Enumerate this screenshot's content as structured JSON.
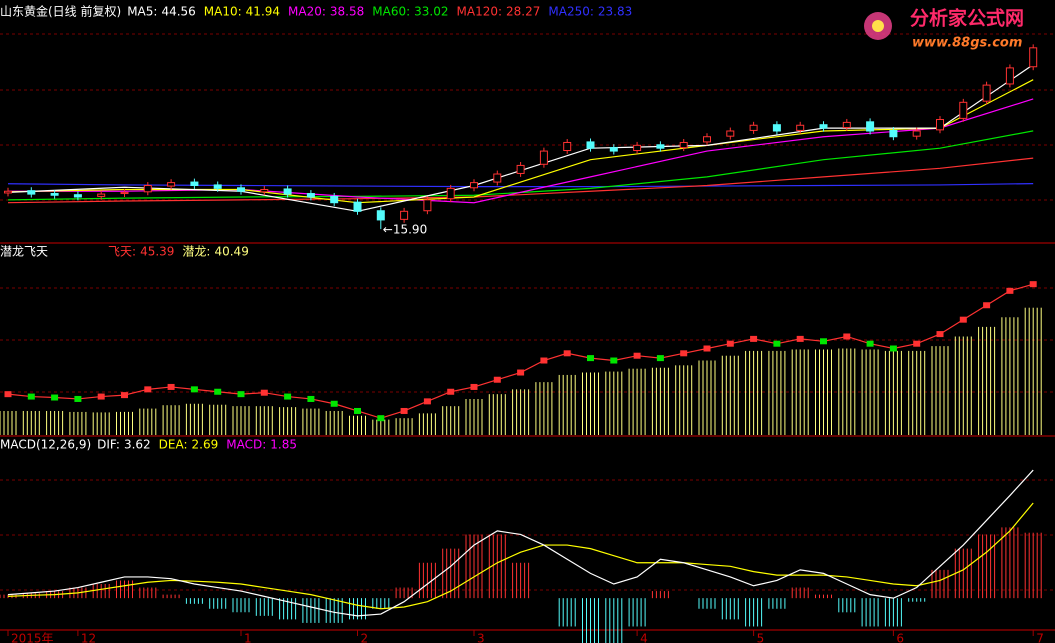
{
  "watermark": {
    "title": "分析家公式网",
    "url": "www.88gs.com"
  },
  "chart_data": [
    {
      "type": "candlestick",
      "title": "山东黄金(日线 前复权)",
      "open": [
        22.2,
        22.6,
        22.1,
        21.9,
        21.6,
        22.1,
        22.4,
        23.4,
        24.1,
        23.6,
        23.1,
        22.4,
        22.9,
        22.1,
        21.6,
        20.6,
        19.1,
        17.6,
        19.1,
        21.2,
        23.1,
        24.1,
        25.6,
        27.2,
        29.6,
        31.1,
        30.1,
        29.6,
        30.6,
        30.1,
        31.1,
        32.1,
        33.1,
        34.1,
        33.1,
        34.1,
        33.6,
        34.6,
        33.1,
        32.1,
        33.2,
        35.2,
        38.2,
        41.2,
        44.2
      ],
      "close": [
        22.5,
        22,
        21.8,
        21.5,
        22,
        22.3,
        23.5,
        24,
        23.5,
        23,
        22.5,
        22.8,
        22,
        21.5,
        20.5,
        19,
        17.5,
        19,
        21,
        23,
        24,
        25.5,
        27,
        29.5,
        31,
        30,
        29.5,
        30.5,
        30,
        31,
        32,
        33,
        34,
        33,
        34,
        33.5,
        34.5,
        33,
        32,
        33,
        35,
        38,
        41,
        44,
        47.5
      ],
      "high": [
        23.1,
        23.2,
        22.7,
        22.5,
        22.6,
        22.9,
        24.1,
        24.6,
        24.7,
        24.2,
        23.7,
        23.4,
        23.5,
        22.7,
        22.2,
        21.2,
        19.7,
        19.6,
        21.6,
        23.6,
        24.6,
        26.1,
        27.6,
        30.1,
        31.6,
        31.7,
        30.7,
        31.1,
        31.2,
        31.6,
        32.6,
        33.6,
        34.6,
        34.7,
        34.6,
        34.7,
        35.1,
        35.2,
        33.7,
        33.6,
        35.6,
        38.6,
        41.6,
        44.6,
        48.1
      ],
      "low": [
        21.6,
        21.4,
        21.2,
        20.9,
        21.0,
        21.5,
        21.8,
        22.8,
        22.9,
        22.4,
        21.9,
        21.8,
        21.4,
        20.9,
        19.9,
        18.4,
        15.9,
        17.0,
        18.5,
        20.6,
        22.5,
        23.5,
        25.0,
        26.6,
        29.0,
        29.4,
        28.9,
        29.0,
        29.4,
        29.5,
        30.5,
        31.5,
        32.5,
        32.4,
        32.5,
        32.9,
        33.0,
        32.4,
        31.4,
        31.5,
        32.6,
        34.6,
        37.6,
        40.6,
        43.6
      ],
      "up_color": "#ff3232",
      "down_color": "#54fcfc",
      "ylim": [
        14,
        52
      ],
      "annotation": "←15.90",
      "series": [
        {
          "name": "MA5:",
          "color": "#ffffff",
          "x": [
            0,
            5,
            10,
            15,
            20,
            25,
            30,
            35,
            40,
            44
          ],
          "values": [
            22.3,
            23.2,
            22.5,
            19,
            23.5,
            30,
            30.5,
            33.5,
            33.5,
            44.56
          ]
        },
        {
          "name": "MA10:",
          "color": "#ffff00",
          "x": [
            0,
            5,
            10,
            15,
            20,
            25,
            30,
            35,
            40,
            44
          ],
          "values": [
            22.4,
            22.8,
            22.8,
            20.5,
            21.5,
            28,
            30.5,
            33,
            33.5,
            41.94
          ]
        },
        {
          "name": "MA20:",
          "color": "#ff00ff",
          "x": [
            0,
            5,
            10,
            15,
            20,
            25,
            30,
            35,
            40,
            44
          ],
          "values": [
            22.5,
            22.5,
            22.8,
            21.5,
            20.5,
            25,
            29.5,
            32,
            33.5,
            38.58
          ]
        },
        {
          "name": "MA60:",
          "color": "#00e600",
          "x": [
            0,
            5,
            10,
            15,
            20,
            25,
            30,
            35,
            40,
            44
          ],
          "values": [
            21,
            21.3,
            21.5,
            21.6,
            21.8,
            23,
            25,
            28,
            30,
            33.02
          ]
        },
        {
          "name": "MA120:",
          "color": "#ff3232",
          "x": [
            0,
            5,
            10,
            15,
            20,
            25,
            30,
            35,
            40,
            44
          ],
          "values": [
            20.5,
            20.8,
            21,
            21.2,
            21.5,
            22.5,
            23.5,
            25,
            26.5,
            28.27
          ]
        },
        {
          "name": "MA250:",
          "color": "#3030ff",
          "x": [
            0,
            5,
            10,
            15,
            20,
            25,
            30,
            35,
            40,
            44
          ],
          "values": [
            23.8,
            23.6,
            23.5,
            23.4,
            23.3,
            23.3,
            23.4,
            23.5,
            23.6,
            23.83
          ]
        }
      ]
    },
    {
      "type": "indicator",
      "title": "潜龙飞天",
      "ylim": [
        14,
        50
      ],
      "series": [
        {
          "name": "飞天:",
          "color": "#ff3232",
          "down_color": "#00e600",
          "values": [
            22.5,
            22,
            21.8,
            21.5,
            22,
            22.3,
            23.5,
            24,
            23.5,
            23,
            22.5,
            22.8,
            22,
            21.5,
            20.5,
            19,
            17.5,
            19,
            21,
            23,
            24,
            25.5,
            27,
            29.5,
            31,
            30,
            29.5,
            30.5,
            30,
            31,
            32,
            33,
            34,
            33,
            34,
            33.5,
            34.5,
            33,
            32,
            33,
            35,
            38,
            41,
            44,
            45.39
          ]
        },
        {
          "name": "潜龙:",
          "color": "#ffff80",
          "values": [
            19,
            19,
            19,
            18.8,
            18.7,
            18.8,
            19.5,
            20.2,
            20.5,
            20.3,
            20,
            20,
            19.8,
            19.5,
            19,
            18,
            17.2,
            17.5,
            18.5,
            20,
            21.5,
            22.5,
            23.5,
            25,
            26.5,
            27,
            27.2,
            27.8,
            28,
            28.5,
            29.5,
            30.5,
            31.5,
            31.5,
            31.8,
            31.8,
            32,
            31.8,
            31.5,
            31.5,
            32.5,
            34.5,
            36.5,
            38.5,
            40.49
          ]
        }
      ]
    },
    {
      "type": "macd",
      "title": "MACD(12,26,9)",
      "ylim": [
        -0.9,
        4.3
      ],
      "categories": [
        "2015年",
        null,
        null,
        "12",
        null,
        null,
        null,
        null,
        null,
        null,
        "1",
        null,
        null,
        null,
        null,
        "2",
        null,
        null,
        null,
        null,
        "3",
        null,
        null,
        null,
        null,
        null,
        null,
        "4",
        null,
        null,
        null,
        null,
        "5",
        null,
        null,
        null,
        null,
        null,
        "6",
        null,
        null,
        null,
        null,
        null,
        "7"
      ],
      "series": [
        {
          "name": "DIF:",
          "color": "#ffffff",
          "values": [
            0.1,
            0.15,
            0.2,
            0.3,
            0.45,
            0.6,
            0.6,
            0.55,
            0.4,
            0.3,
            0.2,
            0.05,
            -0.1,
            -0.25,
            -0.4,
            -0.5,
            -0.45,
            -0.1,
            0.4,
            0.9,
            1.5,
            1.9,
            1.8,
            1.5,
            1.1,
            0.7,
            0.4,
            0.6,
            1.1,
            1.0,
            0.8,
            0.6,
            0.35,
            0.5,
            0.8,
            0.7,
            0.4,
            0.1,
            0.0,
            0.3,
            0.9,
            1.5,
            2.2,
            2.9,
            3.62
          ]
        },
        {
          "name": "DEA:",
          "color": "#ffff00",
          "values": [
            0.05,
            0.08,
            0.1,
            0.15,
            0.25,
            0.35,
            0.45,
            0.5,
            0.48,
            0.45,
            0.4,
            0.3,
            0.2,
            0.1,
            -0.05,
            -0.2,
            -0.3,
            -0.25,
            -0.1,
            0.2,
            0.6,
            1.0,
            1.3,
            1.5,
            1.5,
            1.4,
            1.2,
            1.0,
            1.0,
            1.0,
            0.95,
            0.9,
            0.75,
            0.65,
            0.65,
            0.65,
            0.6,
            0.5,
            0.4,
            0.35,
            0.5,
            0.8,
            1.3,
            1.9,
            2.69
          ]
        },
        {
          "name": "MACD:",
          "color": "#ff00ff",
          "up_color": "#ff3232",
          "down_color": "#54fcfc",
          "values": [
            0.1,
            0.14,
            0.2,
            0.3,
            0.4,
            0.5,
            0.3,
            0.1,
            -0.16,
            -0.3,
            -0.4,
            -0.5,
            -0.6,
            -0.7,
            -0.7,
            -0.6,
            -0.3,
            0.3,
            1.0,
            1.4,
            1.8,
            1.8,
            1.0,
            0,
            -0.8,
            -1.4,
            -1.6,
            -0.8,
            0.2,
            0,
            -0.3,
            -0.6,
            -0.8,
            -0.3,
            0.3,
            0.1,
            -0.4,
            -0.8,
            -0.8,
            -0.1,
            0.8,
            1.4,
            1.8,
            2.0,
            1.85
          ]
        }
      ]
    }
  ]
}
